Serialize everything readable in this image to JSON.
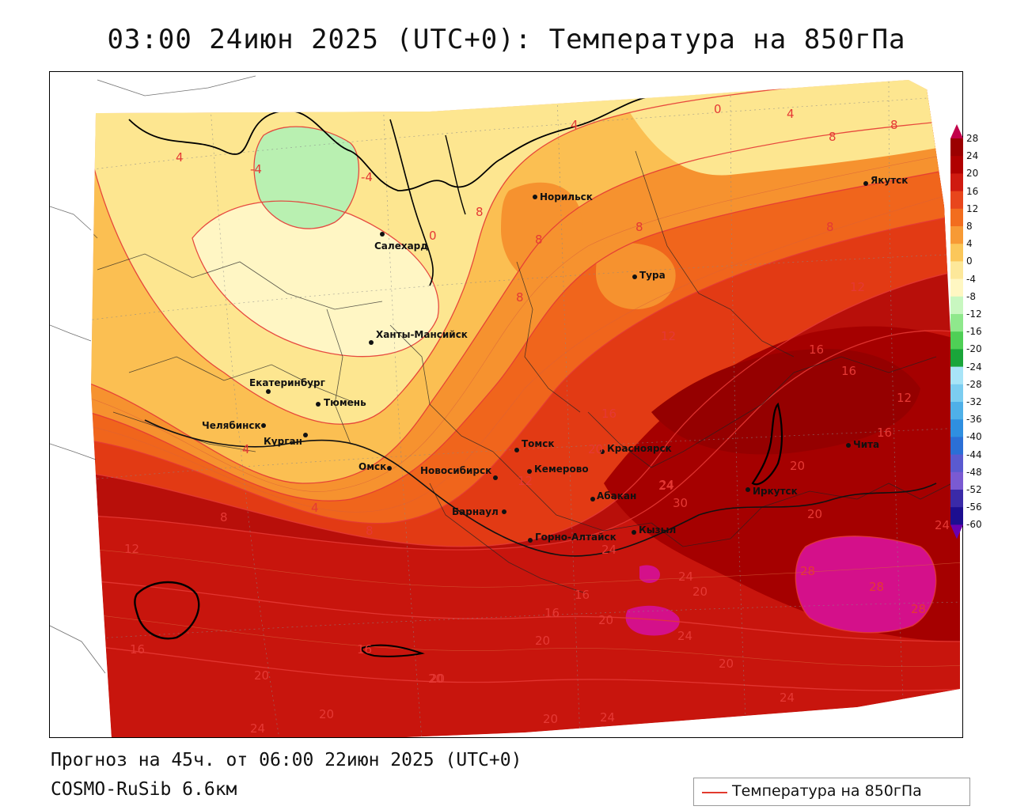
{
  "title": "03:00 24июн 2025 (UTC+0): Температура на 850гПа",
  "forecast_text": "Прогноз на 45ч. от 06:00 22июн 2025 (UTC+0)",
  "model_text": "COSMO-RuSib 6.6км",
  "legend": {
    "label": "Температура на 850гПа",
    "line_color": "#e23a2e"
  },
  "colorbar": {
    "ticks": [
      "28",
      "24",
      "20",
      "16",
      "12",
      "8",
      "4",
      "0",
      "-4",
      "-8",
      "-12",
      "-16",
      "-20",
      "-24",
      "-28",
      "-32",
      "-36",
      "-40",
      "-44",
      "-48",
      "-52",
      "-56",
      "-60"
    ],
    "colors": [
      "#c2004a",
      "#9b0000",
      "#b00000",
      "#cf1a10",
      "#e8461c",
      "#f26d1e",
      "#f79a35",
      "#fbc75a",
      "#fde89a",
      "#fff7c2",
      "#c8f7c0",
      "#8fe88c",
      "#4fcf56",
      "#1aa53a",
      "#a8e4f7",
      "#7ccdf0",
      "#4fb0e8",
      "#2f8fe0",
      "#2b6fd6",
      "#5a5ad0",
      "#7a5ad2",
      "#3a2aa8",
      "#1c0e90",
      "#6a00b0"
    ]
  },
  "cities": [
    {
      "name": "Норильск"
    },
    {
      "name": "Салехард"
    },
    {
      "name": "Якутск"
    },
    {
      "name": "Тура"
    },
    {
      "name": "Ханты-Мансийск"
    },
    {
      "name": "Екатеринбург"
    },
    {
      "name": "Тюмень"
    },
    {
      "name": "Челябинск"
    },
    {
      "name": "Курган"
    },
    {
      "name": "Омск"
    },
    {
      "name": "Новосибирск"
    },
    {
      "name": "Томск"
    },
    {
      "name": "Кемерово"
    },
    {
      "name": "Красноярск"
    },
    {
      "name": "Барнаул"
    },
    {
      "name": "Абакан"
    },
    {
      "name": "Кызыл"
    },
    {
      "name": "Горно-Алтайск"
    },
    {
      "name": "Иркутск"
    },
    {
      "name": "Чита"
    }
  ],
  "isotherm_labels": [
    "-4",
    "-4",
    "4",
    "0",
    "4",
    "8",
    "8",
    "12",
    "16",
    "20",
    "24",
    "28",
    "28",
    "0",
    "4",
    "8",
    "8",
    "8",
    "8",
    "12",
    "16",
    "16",
    "12",
    "16",
    "20",
    "20",
    "24",
    "30",
    "24",
    "8",
    "4",
    "4",
    "8",
    "12",
    "16",
    "20",
    "24",
    "16",
    "16",
    "20",
    "20",
    "24",
    "24",
    "20",
    "16",
    "20",
    "20",
    "24",
    "20",
    "28",
    "24",
    "20",
    "24",
    "20",
    "12",
    "8"
  ]
}
